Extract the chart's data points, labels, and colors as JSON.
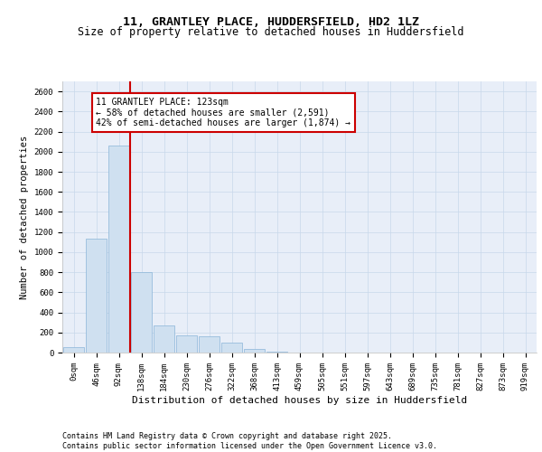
{
  "title1": "11, GRANTLEY PLACE, HUDDERSFIELD, HD2 1LZ",
  "title2": "Size of property relative to detached houses in Huddersfield",
  "xlabel": "Distribution of detached houses by size in Huddersfield",
  "ylabel": "Number of detached properties",
  "bar_color": "#cfe0f0",
  "bar_edge_color": "#8ab4d8",
  "grid_color": "#c8d8ea",
  "background_color": "#e8eef8",
  "vline_color": "#cc0000",
  "annotation_box_color": "#cc0000",
  "annotation_text": "11 GRANTLEY PLACE: 123sqm\n← 58% of detached houses are smaller (2,591)\n42% of semi-detached houses are larger (1,874) →",
  "categories": [
    "0sqm",
    "46sqm",
    "92sqm",
    "138sqm",
    "184sqm",
    "230sqm",
    "276sqm",
    "322sqm",
    "368sqm",
    "413sqm",
    "459sqm",
    "505sqm",
    "551sqm",
    "597sqm",
    "643sqm",
    "689sqm",
    "735sqm",
    "781sqm",
    "827sqm",
    "873sqm",
    "919sqm"
  ],
  "values": [
    50,
    1130,
    2060,
    800,
    270,
    170,
    160,
    100,
    40,
    10,
    0,
    0,
    0,
    0,
    0,
    0,
    0,
    0,
    0,
    0,
    0
  ],
  "ylim": [
    0,
    2700
  ],
  "yticks": [
    0,
    200,
    400,
    600,
    800,
    1000,
    1200,
    1400,
    1600,
    1800,
    2000,
    2200,
    2400,
    2600
  ],
  "footer": "Contains HM Land Registry data © Crown copyright and database right 2025.\nContains public sector information licensed under the Open Government Licence v3.0.",
  "title1_fontsize": 9.5,
  "title2_fontsize": 8.5,
  "xlabel_fontsize": 8,
  "ylabel_fontsize": 7.5,
  "tick_fontsize": 6.5,
  "annotation_fontsize": 7,
  "footer_fontsize": 6
}
